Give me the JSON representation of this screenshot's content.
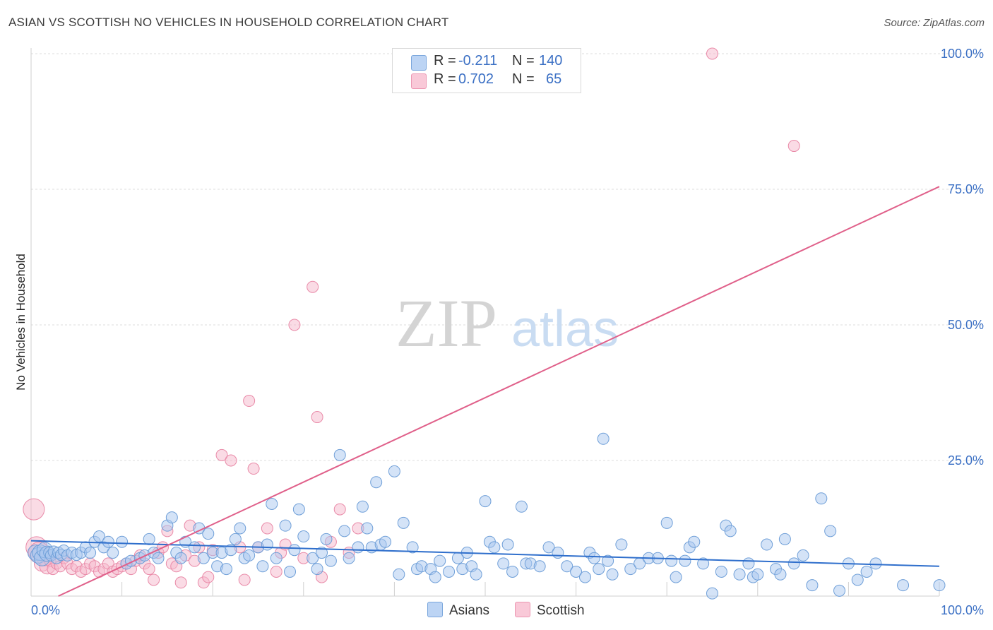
{
  "title": "ASIAN VS SCOTTISH NO VEHICLES IN HOUSEHOLD CORRELATION CHART",
  "source": "Source: ZipAtlas.com",
  "watermark": {
    "zip": "ZIP",
    "atlas": "atlas"
  },
  "legend": {
    "rows": [
      {
        "r_label": "R =",
        "r_value": "-0.211",
        "n_label": "N =",
        "n_value": "140",
        "color": "#a9c7ef"
      },
      {
        "r_label": "R =",
        "r_value": "0.702",
        "n_label": "N =",
        "n_value": "65",
        "color": "#f6b8cc"
      }
    ]
  },
  "bottom_legend": [
    {
      "label": "Asians",
      "color": "#a9c7ef"
    },
    {
      "label": "Scottish",
      "color": "#f6b8cc"
    }
  ],
  "chart_data": {
    "type": "scatter",
    "title": "ASIAN VS SCOTTISH NO VEHICLES IN HOUSEHOLD CORRELATION CHART",
    "xlabel": "",
    "ylabel": "No Vehicles in Household",
    "xlim": [
      0,
      100
    ],
    "ylim": [
      0,
      100
    ],
    "x_tick_labels": [
      "0.0%",
      "100.0%"
    ],
    "y_tick_labels": [
      "25.0%",
      "50.0%",
      "75.0%",
      "100.0%"
    ],
    "y_ticks": [
      25,
      50,
      75,
      100
    ],
    "grid": true,
    "legend_placement": "top-center",
    "series": [
      {
        "name": "Asians",
        "color": "#a9c7ef",
        "edge": "#6f9fd8",
        "line_color": "#2f6fcc",
        "trend": {
          "x": [
            0,
            100
          ],
          "y": [
            10.2,
            5.5
          ]
        },
        "points": [
          [
            0.5,
            8
          ],
          [
            0.8,
            7.5
          ],
          [
            1,
            8
          ],
          [
            1.2,
            7
          ],
          [
            1.5,
            8.5
          ],
          [
            1.8,
            7.8
          ],
          [
            2,
            8
          ],
          [
            2.2,
            7.5
          ],
          [
            2.5,
            8.2
          ],
          [
            2.8,
            7
          ],
          [
            3,
            8
          ],
          [
            3.3,
            7.6
          ],
          [
            3.6,
            8.4
          ],
          [
            4,
            7.5
          ],
          [
            4.5,
            8
          ],
          [
            5,
            7.6
          ],
          [
            5.5,
            8
          ],
          [
            6,
            9
          ],
          [
            6.5,
            8
          ],
          [
            7,
            10
          ],
          [
            7.5,
            11
          ],
          [
            8,
            9
          ],
          [
            8.5,
            10
          ],
          [
            9,
            8
          ],
          [
            10,
            10
          ],
          [
            10.5,
            6
          ],
          [
            11,
            6.5
          ],
          [
            12,
            7
          ],
          [
            12.5,
            7.5
          ],
          [
            13,
            10.5
          ],
          [
            13.5,
            8
          ],
          [
            14,
            7
          ],
          [
            15,
            13
          ],
          [
            15.5,
            14.5
          ],
          [
            16,
            8
          ],
          [
            16.5,
            7
          ],
          [
            17,
            10
          ],
          [
            18,
            9
          ],
          [
            18.5,
            12.5
          ],
          [
            19,
            7
          ],
          [
            19.5,
            11.5
          ],
          [
            20,
            8
          ],
          [
            20.5,
            5.5
          ],
          [
            21,
            8
          ],
          [
            21.5,
            5
          ],
          [
            22,
            8.5
          ],
          [
            22.5,
            10.5
          ],
          [
            23,
            12.5
          ],
          [
            23.5,
            7
          ],
          [
            24,
            7.5
          ],
          [
            25,
            9
          ],
          [
            25.5,
            5.5
          ],
          [
            26,
            9.5
          ],
          [
            26.5,
            17
          ],
          [
            27,
            7
          ],
          [
            28,
            13
          ],
          [
            28.5,
            4.5
          ],
          [
            29,
            8.5
          ],
          [
            29.5,
            16
          ],
          [
            30,
            11
          ],
          [
            31,
            7
          ],
          [
            31.5,
            5
          ],
          [
            32,
            8
          ],
          [
            32.5,
            10.5
          ],
          [
            33,
            6.5
          ],
          [
            34,
            26
          ],
          [
            34.5,
            12
          ],
          [
            35,
            7
          ],
          [
            36,
            9
          ],
          [
            36.5,
            16.5
          ],
          [
            37,
            12.5
          ],
          [
            37.5,
            9
          ],
          [
            38,
            21
          ],
          [
            38.5,
            9.5
          ],
          [
            39,
            10
          ],
          [
            40,
            23
          ],
          [
            40.5,
            4
          ],
          [
            41,
            13.5
          ],
          [
            42,
            9
          ],
          [
            42.5,
            5
          ],
          [
            43,
            5.5
          ],
          [
            44,
            5
          ],
          [
            44.5,
            3.5
          ],
          [
            45,
            6.5
          ],
          [
            46,
            4.5
          ],
          [
            47,
            7
          ],
          [
            47.5,
            5
          ],
          [
            48,
            8
          ],
          [
            48.5,
            5.5
          ],
          [
            49,
            4
          ],
          [
            50,
            17.5
          ],
          [
            50.5,
            10
          ],
          [
            51,
            9
          ],
          [
            52,
            6
          ],
          [
            52.5,
            9.5
          ],
          [
            53,
            4.5
          ],
          [
            54,
            16.5
          ],
          [
            54.5,
            6
          ],
          [
            55,
            6
          ],
          [
            56,
            5.5
          ],
          [
            57,
            9
          ],
          [
            58,
            8
          ],
          [
            59,
            5.5
          ],
          [
            60,
            4.5
          ],
          [
            61,
            3.5
          ],
          [
            61.5,
            8
          ],
          [
            62,
            7
          ],
          [
            62.5,
            5
          ],
          [
            63,
            29
          ],
          [
            63.5,
            6.5
          ],
          [
            64,
            4
          ],
          [
            65,
            9.5
          ],
          [
            66,
            5
          ],
          [
            67,
            6
          ],
          [
            68,
            7
          ],
          [
            69,
            7
          ],
          [
            70,
            13.5
          ],
          [
            70.5,
            6.5
          ],
          [
            71,
            3.5
          ],
          [
            72,
            6.5
          ],
          [
            72.5,
            9
          ],
          [
            73,
            10
          ],
          [
            74,
            6
          ],
          [
            75,
            0.5
          ],
          [
            76,
            4.5
          ],
          [
            76.5,
            13
          ],
          [
            77,
            12
          ],
          [
            78,
            4
          ],
          [
            79,
            6
          ],
          [
            79.5,
            3.5
          ],
          [
            80,
            4
          ],
          [
            81,
            9.5
          ],
          [
            82,
            5
          ],
          [
            82.5,
            4
          ],
          [
            83,
            10.5
          ],
          [
            84,
            6
          ],
          [
            85,
            7.5
          ],
          [
            86,
            2
          ],
          [
            87,
            18
          ],
          [
            88,
            12
          ],
          [
            89,
            1
          ],
          [
            90,
            6
          ],
          [
            91,
            3
          ],
          [
            92,
            4.5
          ],
          [
            93,
            6
          ],
          [
            96,
            2
          ],
          [
            100,
            2
          ]
        ]
      },
      {
        "name": "Scottish",
        "color": "#f6b8cc",
        "edge": "#e98aa8",
        "line_color": "#e0608a",
        "trend": {
          "x": [
            3,
            100
          ],
          "y": [
            0,
            75.5
          ]
        },
        "points": [
          [
            0.3,
            16
          ],
          [
            0.6,
            9
          ],
          [
            0.9,
            8
          ],
          [
            1.2,
            6
          ],
          [
            1.5,
            7
          ],
          [
            1.8,
            5.5
          ],
          [
            2.1,
            6.5
          ],
          [
            2.4,
            5
          ],
          [
            2.8,
            6
          ],
          [
            3.2,
            5.5
          ],
          [
            3.6,
            7
          ],
          [
            4,
            6
          ],
          [
            4.5,
            5
          ],
          [
            5,
            5.5
          ],
          [
            5.5,
            4.5
          ],
          [
            6,
            5
          ],
          [
            6.5,
            6
          ],
          [
            7,
            5.5
          ],
          [
            7.5,
            4.5
          ],
          [
            8,
            5
          ],
          [
            8.5,
            6
          ],
          [
            9,
            4.5
          ],
          [
            9.5,
            5
          ],
          [
            10,
            5.5
          ],
          [
            10.5,
            6
          ],
          [
            11,
            5
          ],
          [
            11.5,
            6.5
          ],
          [
            12,
            7.5
          ],
          [
            12.5,
            6
          ],
          [
            13,
            5
          ],
          [
            13.5,
            3
          ],
          [
            14,
            8
          ],
          [
            14.5,
            9
          ],
          [
            15,
            12
          ],
          [
            15.5,
            6
          ],
          [
            16,
            5.5
          ],
          [
            16.5,
            2.5
          ],
          [
            17,
            7.5
          ],
          [
            17.5,
            13
          ],
          [
            18,
            6.5
          ],
          [
            18.5,
            9
          ],
          [
            19,
            2.5
          ],
          [
            19.5,
            3.5
          ],
          [
            20,
            8.5
          ],
          [
            21,
            26
          ],
          [
            22,
            25
          ],
          [
            23,
            9
          ],
          [
            23.5,
            3
          ],
          [
            24,
            36
          ],
          [
            24.5,
            23.5
          ],
          [
            25,
            9
          ],
          [
            26,
            12.5
          ],
          [
            27,
            4.5
          ],
          [
            27.5,
            8
          ],
          [
            28,
            9.5
          ],
          [
            29,
            50
          ],
          [
            30,
            7
          ],
          [
            31,
            57
          ],
          [
            31.5,
            33
          ],
          [
            32,
            3.5
          ],
          [
            33,
            10
          ],
          [
            34,
            16
          ],
          [
            35,
            8
          ],
          [
            36,
            12.5
          ],
          [
            75,
            100
          ],
          [
            84,
            83
          ]
        ]
      }
    ]
  }
}
